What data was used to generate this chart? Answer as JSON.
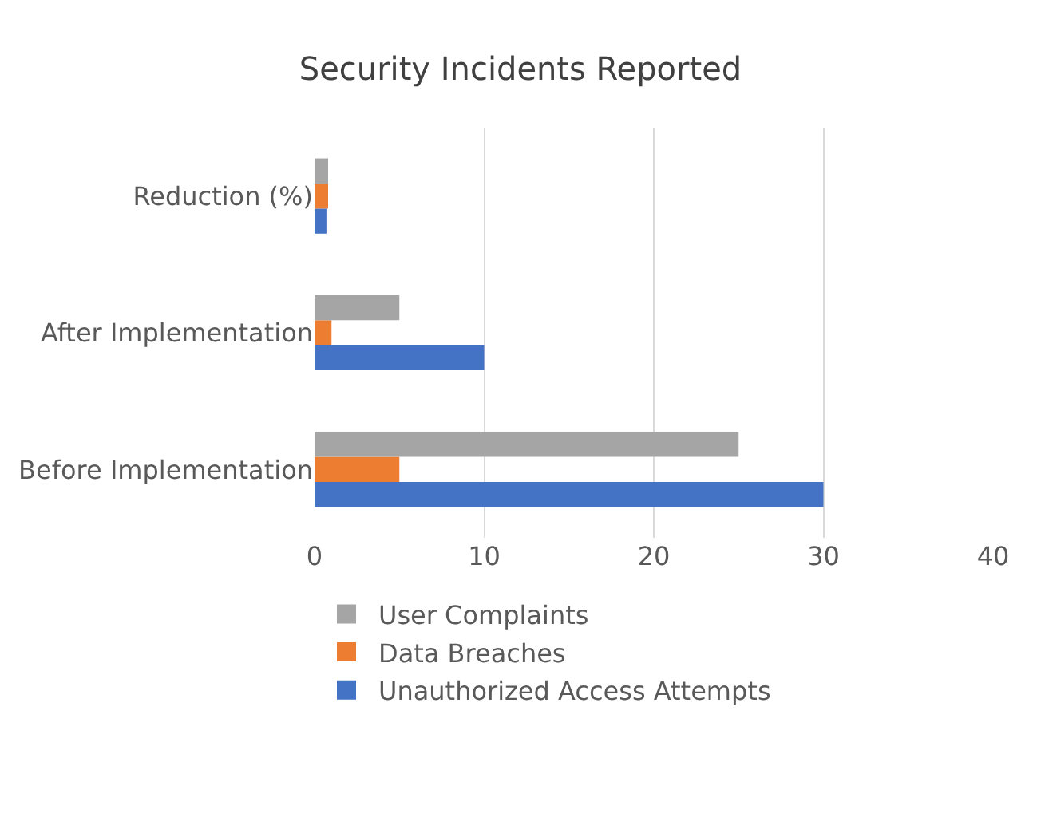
{
  "chart_data": {
    "type": "bar",
    "orientation": "horizontal",
    "title": "Security Incidents Reported",
    "categories": [
      "Reduction (%)",
      "After Implementation",
      "Before Implementation"
    ],
    "series": [
      {
        "name": "Unauthorized Access Attempts",
        "color": "#4472c4",
        "values": [
          0.7,
          10,
          30
        ]
      },
      {
        "name": "Data Breaches",
        "color": "#ed7d31",
        "values": [
          0.8,
          1,
          5
        ]
      },
      {
        "name": "User Complaints",
        "color": "#a5a5a5",
        "values": [
          0.8,
          5,
          25
        ]
      }
    ],
    "xlim": [
      0,
      40
    ],
    "xticks": [
      0,
      10,
      20,
      30,
      40
    ],
    "grid": "x",
    "legend": "bottom"
  }
}
